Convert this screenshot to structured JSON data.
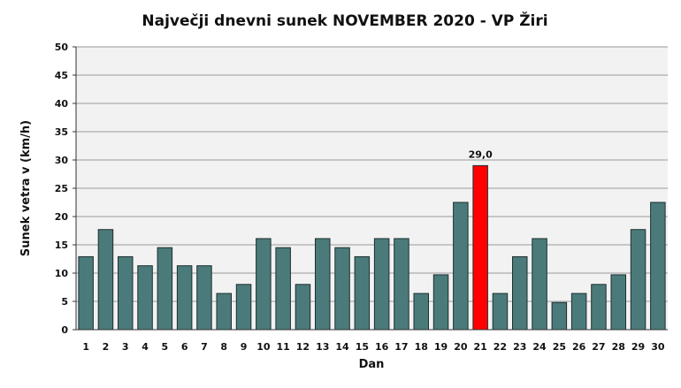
{
  "chart_data": {
    "type": "bar",
    "title": "Največji dnevni sunek NOVEMBER 2020 - VP Žiri",
    "xlabel": "Dan",
    "ylabel": "Sunek vetra v (km/h)",
    "ylim": [
      0,
      50
    ],
    "yticks": [
      "0",
      "5",
      "10",
      "15",
      "20",
      "25",
      "30",
      "35",
      "40",
      "45",
      "50"
    ],
    "grid": true,
    "legend": "none",
    "categories": [
      "1",
      "2",
      "3",
      "4",
      "5",
      "6",
      "7",
      "8",
      "9",
      "10",
      "11",
      "12",
      "13",
      "14",
      "15",
      "16",
      "17",
      "18",
      "19",
      "20",
      "21",
      "22",
      "23",
      "24",
      "25",
      "26",
      "27",
      "28",
      "29",
      "30"
    ],
    "values": [
      12.9,
      17.7,
      12.9,
      11.3,
      14.5,
      11.3,
      11.3,
      6.4,
      8.0,
      16.1,
      14.5,
      8.0,
      16.1,
      14.5,
      12.9,
      16.1,
      16.1,
      6.4,
      9.7,
      22.5,
      29.0,
      6.4,
      12.9,
      16.1,
      4.8,
      6.4,
      8.0,
      9.7,
      17.7,
      22.5
    ],
    "highlight_index": 20,
    "annotations": [
      {
        "category": "21",
        "text": "29,0"
      }
    ],
    "colors": {
      "bar": "#4a7b7a",
      "bar_highlight": "#ff0000",
      "bar_border": "#1e2e2e",
      "plot_background": "#f2f2f2",
      "grid": "#9a9a9a"
    }
  }
}
